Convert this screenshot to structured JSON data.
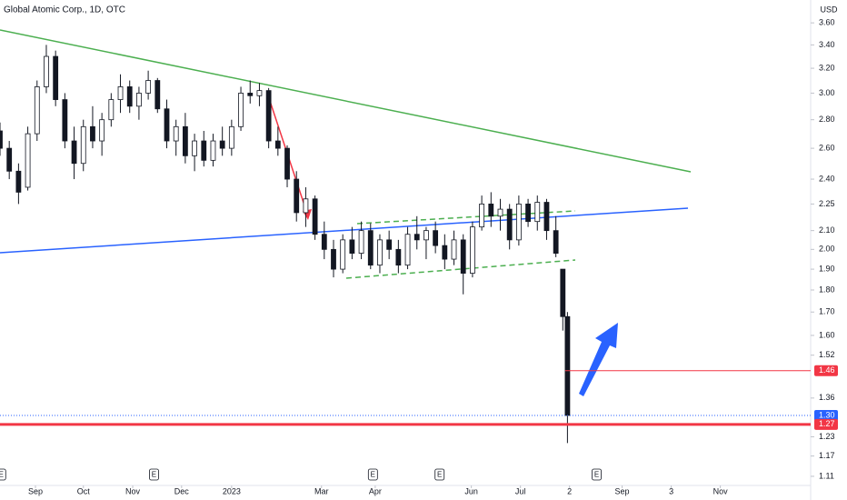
{
  "chart_data": {
    "type": "candlestick",
    "title": "Global Atomic Corp., 1D, OTC",
    "currency": "USD",
    "log_scale": true,
    "grid": false,
    "up_color": "#ffffff",
    "down_color": "#131722",
    "x": [
      0,
      4,
      8,
      12,
      16,
      20,
      24,
      28,
      32,
      36,
      40,
      44,
      48,
      52,
      56,
      60,
      64,
      68,
      72,
      76,
      80,
      84,
      88,
      92,
      96,
      100,
      104,
      108,
      112,
      116,
      120,
      124,
      128,
      132,
      136,
      140,
      144,
      148,
      152,
      156,
      160,
      164,
      168,
      172,
      176,
      180,
      184,
      188,
      192,
      196,
      200,
      204,
      208,
      212,
      216,
      220,
      224,
      228,
      232,
      236,
      240,
      243,
      245
    ],
    "open": [
      2.72,
      2.6,
      2.45,
      2.35,
      2.7,
      3.05,
      3.3,
      2.95,
      2.65,
      2.5,
      2.75,
      2.65,
      2.8,
      2.95,
      3.05,
      2.9,
      3.0,
      3.1,
      2.88,
      2.65,
      2.75,
      2.55,
      2.65,
      2.52,
      2.65,
      2.6,
      2.75,
      3.0,
      2.98,
      3.02,
      2.65,
      2.6,
      2.4,
      2.2,
      2.28,
      2.08,
      2.0,
      1.9,
      2.05,
      1.98,
      2.1,
      1.92,
      2.05,
      2.0,
      1.92,
      2.08,
      2.05,
      2.1,
      2.02,
      1.95,
      2.05,
      1.88,
      2.12,
      2.25,
      2.18,
      2.22,
      2.05,
      2.25,
      2.15,
      2.26,
      2.1,
      1.9,
      1.68
    ],
    "high": [
      2.78,
      2.65,
      2.5,
      2.75,
      3.1,
      3.4,
      3.35,
      3.0,
      2.75,
      2.8,
      2.9,
      2.85,
      3.0,
      3.15,
      3.1,
      3.05,
      3.18,
      3.12,
      2.95,
      2.8,
      2.85,
      2.7,
      2.72,
      2.7,
      2.75,
      2.8,
      3.05,
      3.1,
      3.08,
      3.04,
      2.75,
      2.62,
      2.45,
      2.35,
      2.3,
      2.15,
      2.05,
      2.08,
      2.12,
      2.15,
      2.14,
      2.08,
      2.1,
      2.05,
      2.12,
      2.18,
      2.12,
      2.15,
      2.08,
      2.1,
      2.08,
      2.15,
      2.3,
      2.32,
      2.28,
      2.25,
      2.3,
      2.28,
      2.3,
      2.28,
      2.18,
      1.9,
      1.7
    ],
    "low": [
      2.55,
      2.4,
      2.25,
      2.33,
      2.65,
      3.0,
      2.9,
      2.6,
      2.4,
      2.45,
      2.6,
      2.55,
      2.75,
      2.85,
      2.85,
      2.8,
      2.95,
      2.85,
      2.6,
      2.55,
      2.5,
      2.45,
      2.48,
      2.48,
      2.55,
      2.55,
      2.72,
      2.92,
      2.9,
      2.6,
      2.55,
      2.35,
      2.15,
      2.12,
      2.05,
      1.95,
      1.86,
      1.88,
      1.95,
      1.95,
      1.9,
      1.88,
      1.95,
      1.88,
      1.9,
      2.0,
      1.95,
      1.98,
      1.9,
      1.92,
      1.78,
      1.86,
      2.1,
      2.12,
      2.1,
      2.0,
      2.02,
      2.12,
      2.1,
      2.05,
      1.96,
      1.62,
      1.21
    ],
    "close": [
      2.6,
      2.45,
      2.32,
      2.7,
      3.05,
      3.3,
      2.95,
      2.65,
      2.5,
      2.75,
      2.65,
      2.8,
      2.95,
      3.05,
      2.9,
      3.0,
      3.1,
      2.88,
      2.65,
      2.75,
      2.55,
      2.65,
      2.52,
      2.65,
      2.6,
      2.75,
      3.0,
      2.98,
      3.02,
      2.65,
      2.6,
      2.4,
      2.2,
      2.28,
      2.08,
      2.0,
      1.9,
      2.05,
      1.98,
      2.1,
      1.92,
      2.05,
      2.0,
      1.92,
      2.08,
      2.05,
      2.1,
      2.02,
      1.95,
      2.05,
      1.88,
      2.12,
      2.25,
      2.18,
      2.22,
      2.05,
      2.25,
      2.15,
      2.26,
      2.1,
      1.98,
      1.68,
      1.3
    ],
    "xlim": [
      0,
      350
    ],
    "ylim": [
      1.084,
      3.82
    ],
    "xticks": [
      {
        "value": 15.3,
        "label": "Sep"
      },
      {
        "value": 36,
        "label": "Oct"
      },
      {
        "value": 57.3,
        "label": "Nov"
      },
      {
        "value": 78.4,
        "label": "Dec"
      },
      {
        "value": 100,
        "label": "2023"
      },
      {
        "value": 138.8,
        "label": "Mar"
      },
      {
        "value": 162,
        "label": "Apr"
      },
      {
        "value": 203.5,
        "label": "Jun"
      },
      {
        "value": 224.7,
        "label": "Jul"
      },
      {
        "value": 245.9,
        "label": "2"
      },
      {
        "value": 268.6,
        "label": "Sep"
      },
      {
        "value": 289.8,
        "label": "3"
      },
      {
        "value": 311,
        "label": "Nov"
      }
    ],
    "yticks": [
      {
        "value": 3.6,
        "label": "3.60"
      },
      {
        "value": 3.4,
        "label": "3.40"
      },
      {
        "value": 3.2,
        "label": "3.20"
      },
      {
        "value": 3.0,
        "label": "3.00"
      },
      {
        "value": 2.8,
        "label": "2.80"
      },
      {
        "value": 2.6,
        "label": "2.60"
      },
      {
        "value": 2.4,
        "label": "2.40"
      },
      2.25,
      {
        "value": 2.1,
        "label": "2.10"
      },
      {
        "value": 2.0,
        "label": "2.00"
      },
      {
        "value": 1.9,
        "label": "1.90"
      },
      {
        "value": 1.8,
        "label": "1.80"
      },
      {
        "value": 1.7,
        "label": "1.70"
      },
      {
        "value": 1.6,
        "label": "1.60"
      },
      1.52,
      1.36,
      1.23,
      1.17,
      1.11
    ],
    "price_lines": [
      {
        "value": 1.46,
        "color": "#f23645"
      },
      {
        "value": {
          "value": 1.3,
          "label": "1.30"
        },
        "color": "#2962ff"
      },
      {
        "value": 1.27,
        "color": "#f23645"
      }
    ],
    "events": [
      {
        "x": 0.5,
        "label": "E"
      },
      {
        "x": 66.5,
        "label": "E"
      },
      {
        "x": 161,
        "label": "E"
      },
      {
        "x": 189.8,
        "label": "E"
      },
      {
        "x": 257.6,
        "label": "E"
      }
    ]
  }
}
